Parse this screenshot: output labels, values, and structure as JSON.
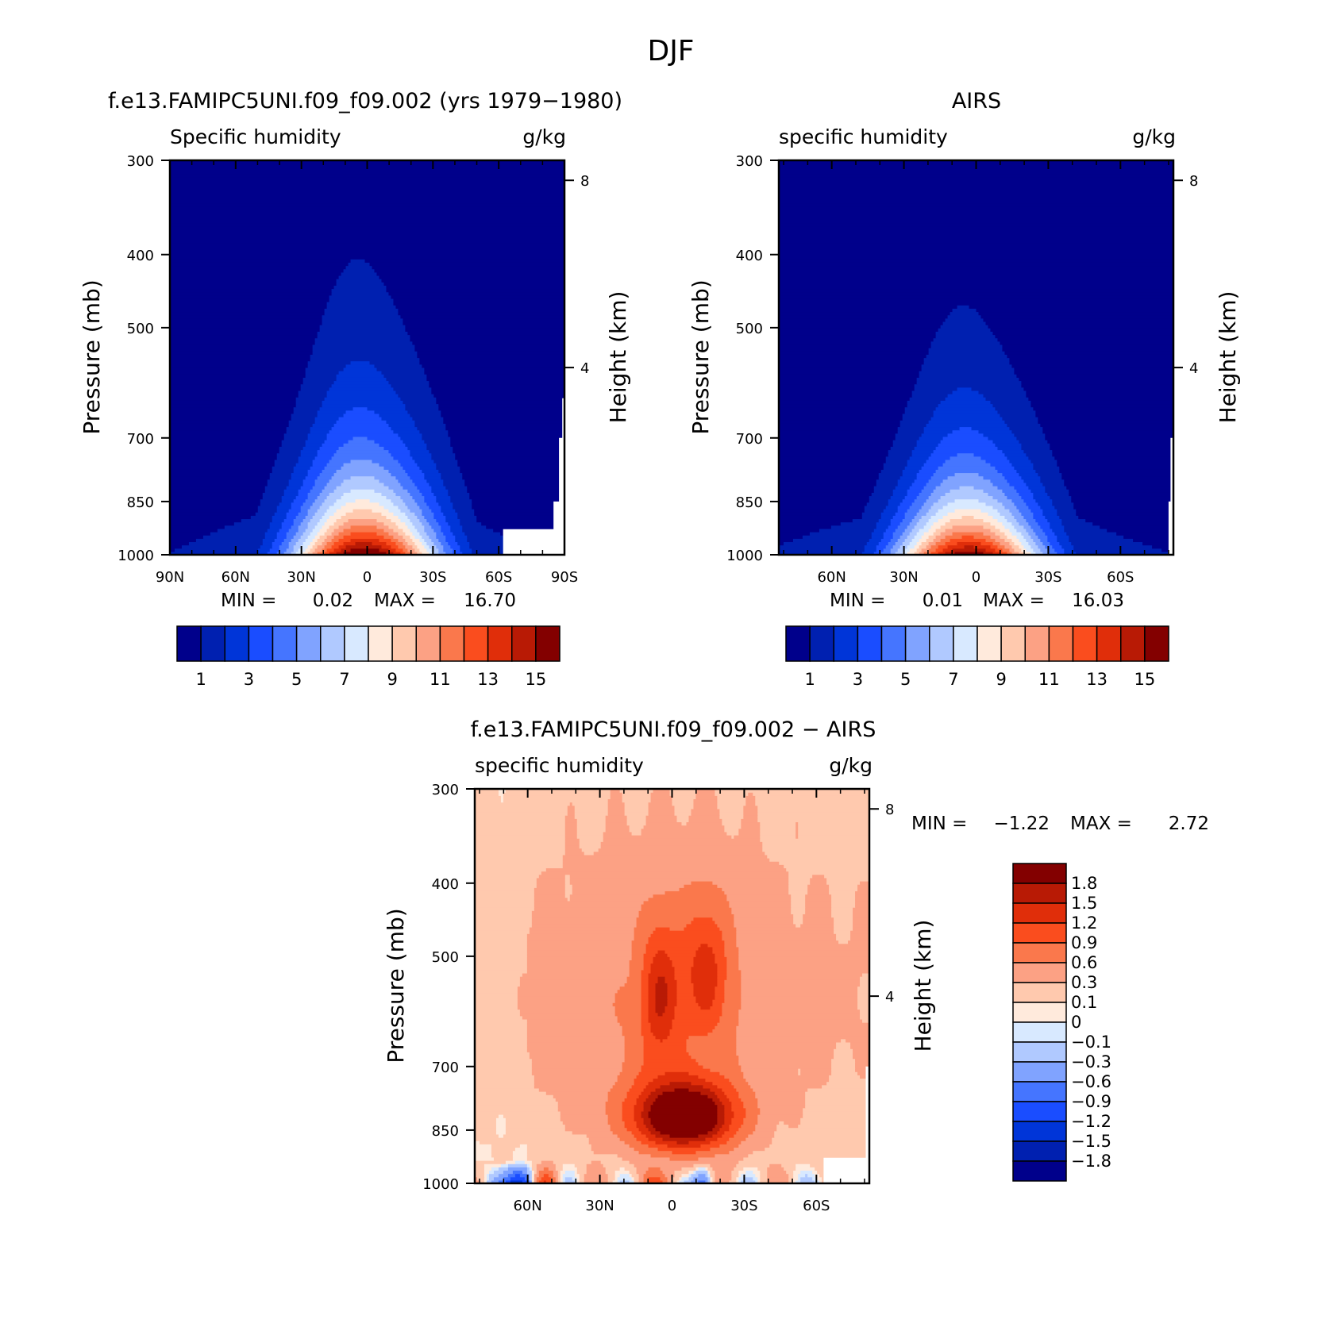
{
  "figure_title": "DJF",
  "stats_label": {
    "min": "MIN =",
    "max": "MAX ="
  },
  "colors": {
    "abs_levels": [
      "#00008b",
      "#0020b0",
      "#0035d8",
      "#1a4dff",
      "#4575ff",
      "#80a3ff",
      "#b0c9ff",
      "#d8e9ff",
      "#ffeadc",
      "#ffc9ae",
      "#fca184",
      "#fa784c",
      "#fa4d1e",
      "#e02e0a",
      "#b81a05",
      "#830000"
    ],
    "diff_levels": [
      "#00008b",
      "#0020b0",
      "#0035d8",
      "#1a4dff",
      "#4575ff",
      "#80a3ff",
      "#b0c9ff",
      "#d8e9ff",
      "#ffeadc",
      "#ffc9ae",
      "#fca184",
      "#fa784c",
      "#fa4d1e",
      "#e02e0a",
      "#b81a05",
      "#830000"
    ]
  },
  "chart_data": [
    {
      "type": "heatmap",
      "panel": "model",
      "title": "f.e13.FAMIPC5UNI.f09_f09.002 (yrs 1979−1980)",
      "left_string": "Specific humidity",
      "right_string": "g/kg",
      "ylabel": "Pressure (mb)",
      "ylabel_right": "Height (km)",
      "x_ticklabels": [
        "90N",
        "60N",
        "30N",
        "0",
        "30S",
        "60S",
        "90S"
      ],
      "x_lat": [
        90,
        60,
        30,
        0,
        -30,
        -60,
        -90
      ],
      "xlim": [
        90,
        -90
      ],
      "y_ticklabels": [
        "300",
        "400",
        "500",
        "700",
        "850",
        "1000"
      ],
      "y_pressure": [
        300,
        400,
        500,
        700,
        850,
        1000
      ],
      "yr_ticklabels": [
        "8",
        "4"
      ],
      "yr_km": [
        8,
        4
      ],
      "ylim": [
        1000,
        300
      ],
      "min": "0.02",
      "max": "16.70",
      "colorbar_labels": [
        "1",
        "3",
        "5",
        "7",
        "9",
        "11",
        "13",
        "15"
      ],
      "contour_levels": [
        1,
        2,
        3,
        4,
        5,
        6,
        7,
        8,
        9,
        10,
        11,
        12,
        13,
        14,
        15
      ],
      "peak_lat": 1,
      "peak_value": 16.7
    },
    {
      "type": "heatmap",
      "panel": "obs",
      "title": "AIRS",
      "left_string": "specific humidity",
      "right_string": "g/kg",
      "ylabel": "Pressure (mb)",
      "ylabel_right": "Height (km)",
      "x_ticklabels": [
        "60N",
        "30N",
        "0",
        "30S",
        "60S"
      ],
      "x_lat": [
        60,
        30,
        0,
        -30,
        -60
      ],
      "xlim": [
        82,
        -82
      ],
      "y_ticklabels": [
        "300",
        "400",
        "500",
        "700",
        "850",
        "1000"
      ],
      "y_pressure": [
        300,
        400,
        500,
        700,
        850,
        1000
      ],
      "yr_ticklabels": [
        "8",
        "4"
      ],
      "yr_km": [
        8,
        4
      ],
      "ylim": [
        1000,
        300
      ],
      "min": "0.01",
      "max": "16.03",
      "colorbar_labels": [
        "1",
        "3",
        "5",
        "7",
        "9",
        "11",
        "13",
        "15"
      ],
      "contour_levels": [
        1,
        2,
        3,
        4,
        5,
        6,
        7,
        8,
        9,
        10,
        11,
        12,
        13,
        14,
        15
      ],
      "peak_lat": 3,
      "peak_value": 16.0
    },
    {
      "type": "heatmap",
      "panel": "difference",
      "title": "f.e13.FAMIPC5UNI.f09_f09.002 − AIRS",
      "left_string": "specific humidity",
      "right_string": "g/kg",
      "ylabel": "Pressure (mb)",
      "ylabel_right": "Height (km)",
      "x_ticklabels": [
        "60N",
        "30N",
        "0",
        "30S",
        "60S"
      ],
      "x_lat": [
        60,
        30,
        0,
        -30,
        -60
      ],
      "xlim": [
        82,
        -82
      ],
      "y_ticklabels": [
        "300",
        "400",
        "500",
        "700",
        "850",
        "1000"
      ],
      "y_pressure": [
        300,
        400,
        500,
        700,
        850,
        1000
      ],
      "yr_ticklabels": [
        "8",
        "4"
      ],
      "yr_km": [
        8,
        4
      ],
      "ylim": [
        1000,
        300
      ],
      "min": "−1.22",
      "max": "2.72",
      "colorbar_labels": [
        "1.8",
        "1.5",
        "1.2",
        "0.9",
        "0.6",
        "0.3",
        "0.1",
        "0",
        "−0.1",
        "−0.3",
        "−0.6",
        "−0.9",
        "−1.2",
        "−1.5",
        "−1.8"
      ],
      "contour_levels": [
        -1.8,
        -1.5,
        -1.2,
        -0.9,
        -0.6,
        -0.3,
        -0.1,
        0,
        0.1,
        0.3,
        0.6,
        0.9,
        1.2,
        1.5,
        1.8
      ],
      "max_region_lat": [
        15,
        -30
      ],
      "max_region_pressure": [
        760,
        900
      ]
    }
  ]
}
